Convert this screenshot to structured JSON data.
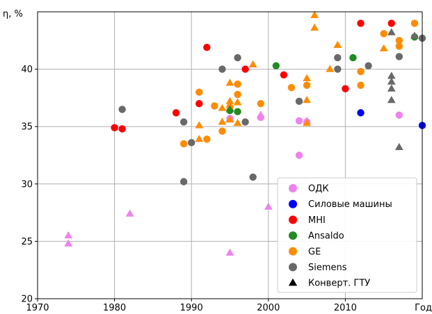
{
  "chart_data": {
    "type": "scatter",
    "title": "",
    "xlabel": "Год",
    "ylabel": "η, %",
    "xlim": [
      1970,
      2020
    ],
    "ylim": [
      20,
      45
    ],
    "xticks": [
      "1970",
      "1980",
      "1990",
      "2000",
      "2010"
    ],
    "yticks": [
      "20",
      "25",
      "30",
      "35",
      "40"
    ],
    "grid": true,
    "legend_position": "bottom-right",
    "series": [
      {
        "name": "ОДК",
        "color": "#ee82ee",
        "marker": "circle",
        "points": [
          [
            1995,
            35.7
          ],
          [
            1999,
            35.8
          ],
          [
            2004,
            35.5
          ],
          [
            2005,
            35.4
          ],
          [
            2004,
            32.5
          ],
          [
            2017,
            36.0
          ]
        ]
      },
      {
        "name": "Силовые машины",
        "color": "#0000ff",
        "marker": "circle",
        "points": [
          [
            2012,
            36.2
          ],
          [
            2020,
            35.1
          ]
        ]
      },
      {
        "name": "MHI",
        "color": "#ff0000",
        "marker": "circle",
        "points": [
          [
            1980,
            34.9
          ],
          [
            1981,
            34.8
          ],
          [
            1988,
            36.2
          ],
          [
            1991,
            37.0
          ],
          [
            1992,
            41.9
          ],
          [
            1997,
            40.0
          ],
          [
            2002,
            39.5
          ],
          [
            2010,
            38.3
          ],
          [
            2012,
            44.0
          ],
          [
            2016,
            44.0
          ]
        ]
      },
      {
        "name": "Ansaldo",
        "color": "#228b22",
        "marker": "circle",
        "points": [
          [
            1995,
            36.4
          ],
          [
            1996,
            36.3
          ],
          [
            2001,
            40.3
          ],
          [
            2011,
            41.0
          ],
          [
            2019,
            42.8
          ]
        ]
      },
      {
        "name": "GE",
        "color": "#ff8c00",
        "marker": "circle",
        "points": [
          [
            1989,
            33.5
          ],
          [
            1991,
            38.0
          ],
          [
            1992,
            33.9
          ],
          [
            1993,
            36.8
          ],
          [
            1994,
            34.6
          ],
          [
            1995,
            36.7
          ],
          [
            1996,
            37.8
          ],
          [
            1996,
            38.7
          ],
          [
            1999,
            37.0
          ],
          [
            2003,
            38.4
          ],
          [
            2005,
            38.6
          ],
          [
            2012,
            39.8
          ],
          [
            2012,
            38.6
          ],
          [
            2015,
            43.1
          ],
          [
            2017,
            42.5
          ],
          [
            2017,
            42.0
          ],
          [
            2019,
            44.0
          ]
        ]
      },
      {
        "name": "Siemens",
        "color": "#696969",
        "marker": "circle",
        "points": [
          [
            1981,
            36.5
          ],
          [
            1989,
            35.4
          ],
          [
            1989,
            30.2
          ],
          [
            1990,
            33.6
          ],
          [
            1994,
            40.0
          ],
          [
            1996,
            41.0
          ],
          [
            1997,
            35.4
          ],
          [
            1998,
            30.6
          ],
          [
            2004,
            37.2
          ],
          [
            2009,
            41.0
          ],
          [
            2009,
            40.0
          ],
          [
            2013,
            40.3
          ],
          [
            2017,
            41.1
          ],
          [
            2020,
            42.7
          ]
        ]
      },
      {
        "name": "Конверт. ГТУ",
        "color": "#000000",
        "marker": "triangle",
        "legend_marker_color": "#000000",
        "points": [
          {
            "x": 1974,
            "y": 25.5,
            "color": "#ee82ee"
          },
          {
            "x": 1974,
            "y": 24.8,
            "color": "#ee82ee"
          },
          {
            "x": 1982,
            "y": 27.4,
            "color": "#ee82ee"
          },
          {
            "x": 1995,
            "y": 24.0,
            "color": "#ee82ee"
          },
          {
            "x": 2000,
            "y": 28.0,
            "color": "#ee82ee"
          },
          {
            "x": 1995,
            "y": 35.7,
            "color": "#ee82ee"
          },
          {
            "x": 1999,
            "y": 36.0,
            "color": "#ee82ee"
          },
          {
            "x": 2005,
            "y": 35.5,
            "color": "#ee82ee"
          },
          {
            "x": 1995,
            "y": 36.5,
            "color": "#228b22"
          },
          {
            "x": 1991,
            "y": 33.9,
            "color": "#ff8c00"
          },
          {
            "x": 1991,
            "y": 35.1,
            "color": "#ff8c00"
          },
          {
            "x": 1994,
            "y": 35.4,
            "color": "#ff8c00"
          },
          {
            "x": 1994,
            "y": 36.6,
            "color": "#ff8c00"
          },
          {
            "x": 1995,
            "y": 35.6,
            "color": "#ff8c00"
          },
          {
            "x": 1995,
            "y": 37.2,
            "color": "#ff8c00"
          },
          {
            "x": 1995,
            "y": 38.8,
            "color": "#ff8c00"
          },
          {
            "x": 1996,
            "y": 35.3,
            "color": "#ff8c00"
          },
          {
            "x": 1996,
            "y": 37.1,
            "color": "#ff8c00"
          },
          {
            "x": 1998,
            "y": 40.4,
            "color": "#ff8c00"
          },
          {
            "x": 2005,
            "y": 35.3,
            "color": "#ff8c00"
          },
          {
            "x": 2005,
            "y": 37.3,
            "color": "#ff8c00"
          },
          {
            "x": 2005,
            "y": 39.2,
            "color": "#ff8c00"
          },
          {
            "x": 2006,
            "y": 44.7,
            "color": "#ff8c00"
          },
          {
            "x": 2006,
            "y": 43.6,
            "color": "#ff8c00"
          },
          {
            "x": 2008,
            "y": 40.0,
            "color": "#ff8c00"
          },
          {
            "x": 2009,
            "y": 42.1,
            "color": "#ff8c00"
          },
          {
            "x": 2015,
            "y": 41.8,
            "color": "#ff8c00"
          },
          {
            "x": 2016,
            "y": 43.2,
            "color": "#696969"
          },
          {
            "x": 2016,
            "y": 39.4,
            "color": "#696969"
          },
          {
            "x": 2016,
            "y": 38.9,
            "color": "#696969"
          },
          {
            "x": 2016,
            "y": 38.3,
            "color": "#696969"
          },
          {
            "x": 2016,
            "y": 37.3,
            "color": "#696969"
          },
          {
            "x": 2017,
            "y": 33.2,
            "color": "#696969"
          },
          {
            "x": 2019,
            "y": 42.9,
            "color": "#696969"
          }
        ]
      }
    ]
  }
}
